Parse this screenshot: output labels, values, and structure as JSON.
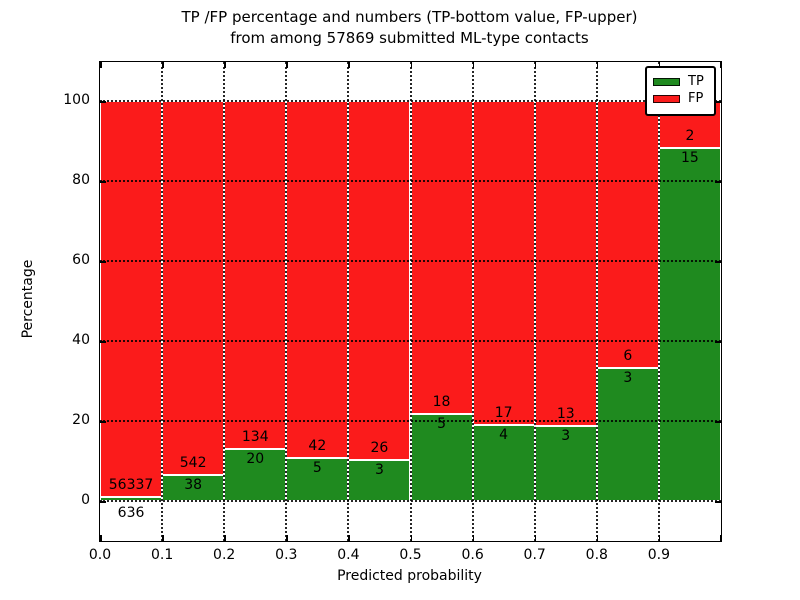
{
  "title": {
    "line1": "TP /FP percentage and numbers (TP-bottom value, FP-upper)",
    "line2": "from among 57869 submitted ML-type contacts"
  },
  "axes": {
    "xlabel": "Predicted probability",
    "ylabel": "Percentage",
    "xticks": [
      "0.0",
      "0.1",
      "0.2",
      "0.3",
      "0.4",
      "0.5",
      "0.6",
      "0.7",
      "0.8",
      "0.9"
    ],
    "yticks": [
      0,
      20,
      40,
      60,
      80,
      100
    ]
  },
  "legend": {
    "position": "upper right",
    "items": [
      {
        "label": "TP",
        "color": "#1f8a1f"
      },
      {
        "label": "FP",
        "color": "#fb1b1b"
      }
    ]
  },
  "colors": {
    "tp": "#1f8a1f",
    "fp": "#fb1b1b",
    "grid": "#000000",
    "text": "#000000",
    "background": "#ffffff"
  },
  "chart_data": {
    "type": "bar",
    "stacked": true,
    "normalized_to_percent": true,
    "title": "TP /FP percentage and numbers (TP-bottom value, FP-upper) from among 57869 submitted ML-type contacts",
    "xlabel": "Predicted probability",
    "ylabel": "Percentage",
    "xlim": [
      0.0,
      1.0
    ],
    "ylim": [
      -10,
      110
    ],
    "grid": "dotted",
    "legend_position": "upper right",
    "total_contacts": 57869,
    "bin_edges": [
      0.0,
      0.1,
      0.2,
      0.3,
      0.4,
      0.5,
      0.6,
      0.7,
      0.8,
      0.9,
      1.0
    ],
    "categories": [
      "0.0-0.1",
      "0.1-0.2",
      "0.2-0.3",
      "0.3-0.4",
      "0.4-0.5",
      "0.5-0.6",
      "0.6-0.7",
      "0.7-0.8",
      "0.8-0.9",
      "0.9-1.0"
    ],
    "series": [
      {
        "name": "TP",
        "color": "#1f8a1f",
        "counts": [
          636,
          38,
          20,
          5,
          3,
          5,
          4,
          3,
          3,
          15
        ]
      },
      {
        "name": "FP",
        "color": "#fb1b1b",
        "counts": [
          56337,
          542,
          134,
          42,
          26,
          18,
          17,
          13,
          6,
          2
        ]
      }
    ],
    "tp_percent": [
      1.12,
      6.55,
      12.99,
      10.64,
      10.34,
      21.74,
      19.05,
      18.75,
      33.33,
      88.24
    ],
    "fp_percent": [
      98.88,
      93.45,
      87.01,
      89.36,
      89.66,
      78.26,
      80.95,
      81.25,
      66.67,
      11.76
    ]
  }
}
